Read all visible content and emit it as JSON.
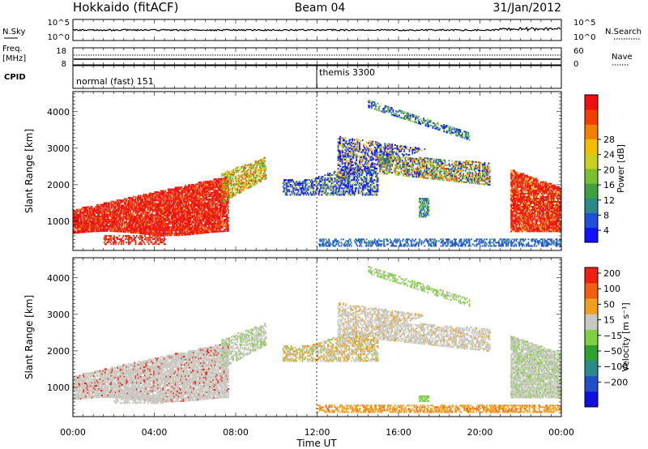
{
  "header": {
    "title": "Hokkaido (fitACF)",
    "beam": "Beam 04",
    "date": "31/Jan/2012"
  },
  "nsky_panel": {
    "left_label": "N.Sky",
    "right_label": "N.Search",
    "left_ticks": [
      "10^5",
      "10^0"
    ],
    "right_ticks": [
      "10^5",
      "10^0"
    ]
  },
  "freq_panel": {
    "left_label_line1": "Freq.",
    "left_label_line2": "[MHz]",
    "left_ticks": [
      "18",
      "8"
    ],
    "right_label": "Nave",
    "right_ticks": [
      "60",
      "0"
    ]
  },
  "cpid_panel": {
    "label": "CPID",
    "segments": [
      {
        "name": "normal (fast) 151",
        "start_hour": 0
      },
      {
        "name": "themis 3300",
        "start_hour": 12
      }
    ]
  },
  "chart_data": [
    {
      "type": "heatmap",
      "panel": "power",
      "ylabel": "Slant Range [km]",
      "xlabel": "Time UT",
      "x_ticks": [
        "00:00",
        "04:00",
        "08:00",
        "12:00",
        "16:00",
        "20:00",
        "00:00"
      ],
      "xlim_hours": [
        0,
        24
      ],
      "y_ticks": [
        1000,
        2000,
        3000,
        4000
      ],
      "ylim": [
        200,
        4550
      ],
      "colorbar_label": "Power [dB]",
      "colorbar_ticks": [
        "28",
        "24",
        "20",
        "16",
        "12",
        "8",
        "4"
      ],
      "colorbar_colors": [
        "#1010ff",
        "#1e50d8",
        "#2a8a8a",
        "#3fa040",
        "#7cc030",
        "#c8d020",
        "#f0c000",
        "#f08000",
        "#f04000",
        "#ee1010"
      ]
    },
    {
      "type": "heatmap",
      "panel": "velocity",
      "ylabel": "Slant Range [km]",
      "xlabel": "Time UT",
      "x_ticks": [
        "00:00",
        "04:00",
        "08:00",
        "12:00",
        "16:00",
        "20:00",
        "00:00"
      ],
      "xlim_hours": [
        0,
        24
      ],
      "y_ticks": [
        1000,
        2000,
        3000,
        4000
      ],
      "ylim": [
        200,
        4550
      ],
      "colorbar_label": "Velocity [m s⁻¹]",
      "colorbar_ticks": [
        "200",
        "100",
        "50",
        "15",
        "−15",
        "−50",
        "−100",
        "−200"
      ],
      "colorbar_colors": [
        "#1010e0",
        "#2050c8",
        "#2a8a8a",
        "#30a030",
        "#80d040",
        "#c8c8c0",
        "#f0a020",
        "#f06010",
        "#f02010"
      ]
    }
  ]
}
